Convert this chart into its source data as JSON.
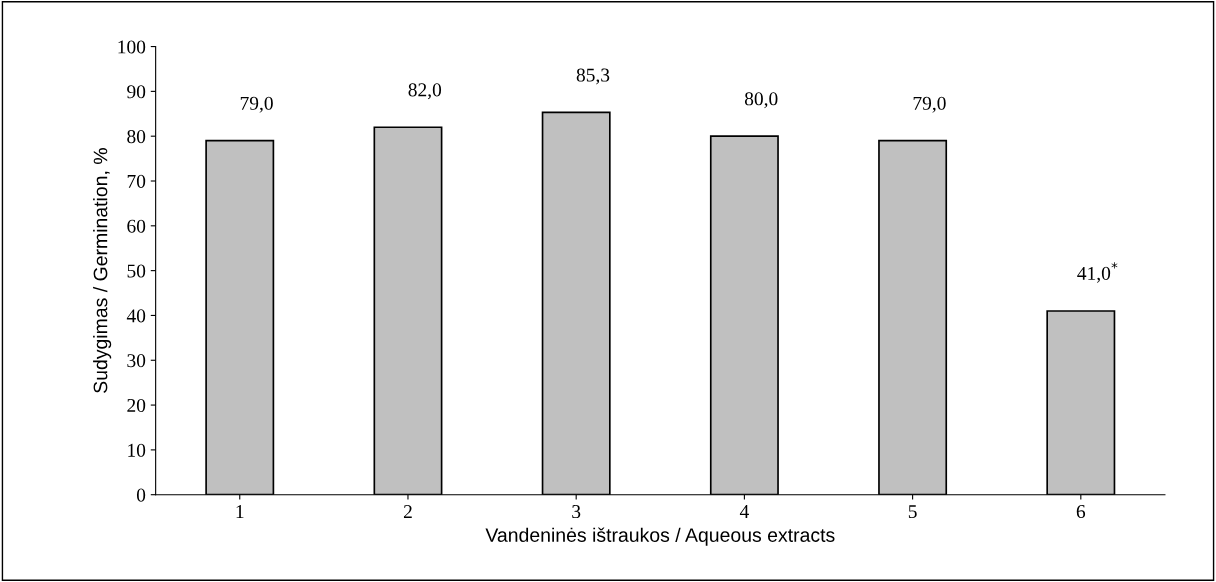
{
  "chart_data": {
    "type": "bar",
    "categories": [
      "1",
      "2",
      "3",
      "4",
      "5",
      "6"
    ],
    "values": [
      79.0,
      82.0,
      85.3,
      80.0,
      79.0,
      41.0
    ],
    "value_labels": [
      "79,0",
      "82,0",
      "85,3",
      "80,0",
      "79,0",
      "41,0$^{*}$"
    ],
    "color": "#c0c0c0",
    "xlabel": "Vandeninės ištraukos / Aqueous extracts",
    "ylabel": "Sudygimas / Germination, %",
    "ylim": [
      0,
      100
    ],
    "yticks": [
      0,
      10,
      20,
      30,
      40,
      50,
      60,
      70,
      80,
      90,
      100
    ],
    "grid": false
  }
}
